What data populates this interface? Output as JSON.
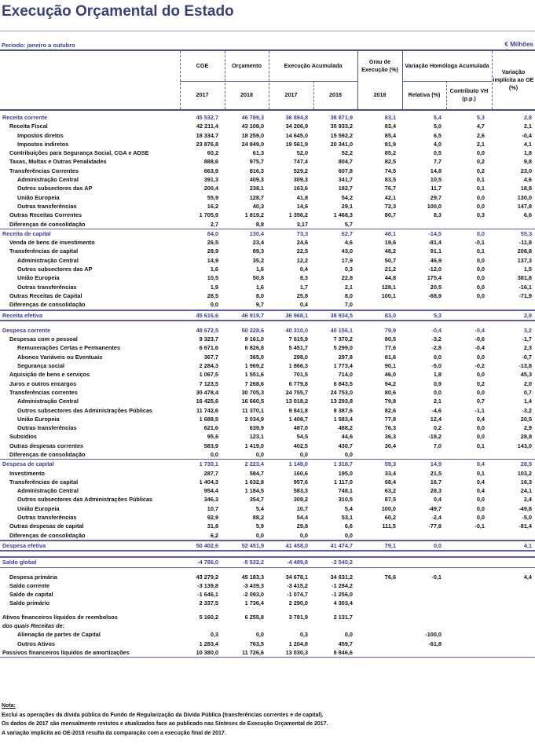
{
  "title": "Execução Orçamental do Estado",
  "period": "Período: janeiro a outubro",
  "units": "€ Milhões",
  "header": {
    "cge": "CGE",
    "orcamento": "Orçamento",
    "execucao": "Execução Acumulada",
    "grau": "Grau de Execução (%)",
    "variacao_homologa": "Variação Homóloga Acumulada",
    "variacao_implicita": "Variação implícita ao OE (%)",
    "y_cge": "2017",
    "y_orc": "2018",
    "y_ex17": "2017",
    "y_ex18": "2018",
    "y_grau": "2018",
    "relativa": "Relativa (%)",
    "contributo": "Contributo VH (p.p.)"
  },
  "rows": [
    {
      "label": "Receita corrente",
      "cls": "sec l0",
      "v": [
        "45 532,7",
        "46 789,3",
        "36 894,8",
        "38 871,9",
        "83,1",
        "5,4",
        "5,3",
        "2,8"
      ]
    },
    {
      "label": "Receita Fiscal",
      "cls": "l1",
      "v": [
        "42 211,4",
        "43 108,0",
        "34 206,9",
        "35 933,2",
        "83,4",
        "5,0",
        "4,7",
        "2,1"
      ]
    },
    {
      "label": "Impostos diretos",
      "cls": "l2",
      "v": [
        "18 334,7",
        "18 259,0",
        "14 645,0",
        "15 592,2",
        "85,4",
        "6,5",
        "2,6",
        "-0,4"
      ]
    },
    {
      "label": "Impostos indiretos",
      "cls": "l2",
      "v": [
        "23 876,8",
        "24 849,0",
        "19 561,9",
        "20 341,0",
        "81,9",
        "4,0",
        "2,1",
        "4,1"
      ]
    },
    {
      "label": "Contribuições para Segurança Social, CGA e ADSE",
      "cls": "l1",
      "v": [
        "60,2",
        "61,3",
        "52,0",
        "52,2",
        "85,2",
        "0,5",
        "0,0",
        "1,8"
      ]
    },
    {
      "label": "Taxas, Multas e Outras Penalidades",
      "cls": "l1",
      "v": [
        "888,6",
        "975,7",
        "747,4",
        "804,7",
        "82,5",
        "7,7",
        "0,2",
        "9,8"
      ]
    },
    {
      "label": "Transferências Correntes",
      "cls": "l1",
      "v": [
        "663,9",
        "816,3",
        "529,2",
        "607,8",
        "74,5",
        "14,8",
        "0,2",
        "23,0"
      ]
    },
    {
      "label": "Administração Central",
      "cls": "l2",
      "v": [
        "391,3",
        "409,3",
        "309,3",
        "341,7",
        "83,5",
        "10,5",
        "0,1",
        "4,6"
      ]
    },
    {
      "label": "Outros subsectores das AP",
      "cls": "l2",
      "v": [
        "200,4",
        "238,1",
        "163,6",
        "182,7",
        "76,7",
        "11,7",
        "0,1",
        "18,8"
      ]
    },
    {
      "label": "União Europeia",
      "cls": "l2",
      "v": [
        "55,9",
        "128,7",
        "41,8",
        "54,2",
        "42,1",
        "29,7",
        "0,0",
        "130,0"
      ]
    },
    {
      "label": "Outras transferências",
      "cls": "l2",
      "v": [
        "16,2",
        "40,3",
        "14,6",
        "29,1",
        "72,3",
        "100,0",
        "0,0",
        "147,8"
      ]
    },
    {
      "label": "Outras Receitas Correntes",
      "cls": "l1",
      "v": [
        "1 705,9",
        "1 819,2",
        "1 356,2",
        "1 468,3",
        "80,7",
        "8,3",
        "0,3",
        "6,6"
      ]
    },
    {
      "label": "Diferenças de consolidação",
      "cls": "l1",
      "v": [
        "2,7",
        "8,8",
        "3,17",
        "5,7",
        "",
        "",
        "",
        ""
      ]
    },
    {
      "label": "Receita de capital",
      "cls": "sec l0 topline",
      "v": [
        "84,0",
        "130,4",
        "73,3",
        "62,7",
        "48,1",
        "-14,5",
        "0,0",
        "55,3"
      ]
    },
    {
      "label": "Venda de bens de investimento",
      "cls": "l1",
      "v": [
        "26,5",
        "23,4",
        "24,6",
        "4,6",
        "19,6",
        "-81,4",
        "-0,1",
        "-11,8"
      ]
    },
    {
      "label": "Transferências de capital",
      "cls": "l1",
      "v": [
        "28,9",
        "89,3",
        "22,5",
        "43,0",
        "48,2",
        "91,1",
        "0,1",
        "208,8"
      ]
    },
    {
      "label": "Administração Central",
      "cls": "l2",
      "v": [
        "14,9",
        "35,2",
        "12,2",
        "17,9",
        "50,7",
        "46,9",
        "0,0",
        "137,3"
      ]
    },
    {
      "label": "Outros subsectores das AP",
      "cls": "l2",
      "v": [
        "1,6",
        "1,6",
        "0,4",
        "0,3",
        "21,2",
        "-12,0",
        "0,0",
        "1,5"
      ]
    },
    {
      "label": "União Europeia",
      "cls": "l2",
      "v": [
        "10,5",
        "50,8",
        "8,3",
        "22,8",
        "44,8",
        "175,4",
        "0,0",
        "381,8"
      ]
    },
    {
      "label": "Outras transferências",
      "cls": "l2",
      "v": [
        "1,9",
        "1,6",
        "1,7",
        "2,1",
        "128,1",
        "20,5",
        "0,0",
        "-16,1"
      ]
    },
    {
      "label": "Outras Receitas de Capital",
      "cls": "l1",
      "v": [
        "28,5",
        "8,0",
        "25,8",
        "8,0",
        "100,1",
        "-68,9",
        "0,0",
        "-71,9"
      ]
    },
    {
      "label": "Diferenças de consolidação",
      "cls": "l1",
      "v": [
        "0,0",
        "9,7",
        "0,4",
        "7,0",
        "",
        "",
        "",
        ""
      ]
    },
    {
      "label": "Receita efetiva",
      "cls": "sec l0 thick botthick",
      "v": [
        "45 616,6",
        "46 919,7",
        "36 968,1",
        "38 934,5",
        "83,0",
        "5,3",
        "",
        "2,9"
      ]
    },
    {
      "label": "",
      "cls": "sp",
      "v": []
    },
    {
      "label": "Despesa corrente",
      "cls": "sec l0",
      "v": [
        "48 672,5",
        "50 228,6",
        "40 310,0",
        "40 156,1",
        "79,9",
        "-0,4",
        "-0,4",
        "3,2"
      ]
    },
    {
      "label": "Despesas com o pessoal",
      "cls": "l1",
      "v": [
        "9 323,7",
        "9 161,0",
        "7 615,9",
        "7 370,2",
        "80,5",
        "-3,2",
        "-0,6",
        "-1,7"
      ]
    },
    {
      "label": "Remunerações Certas e Permanentes",
      "cls": "l2",
      "v": [
        "6 671,6",
        "6 826,8",
        "5 451,7",
        "5 299,0",
        "77,6",
        "-2,8",
        "-0,4",
        "2,3"
      ]
    },
    {
      "label": "Abonos Variáveis ou Eventuais",
      "cls": "l2",
      "v": [
        "367,7",
        "365,0",
        "298,0",
        "297,8",
        "81,6",
        "0,0",
        "0,0",
        "-0,7"
      ]
    },
    {
      "label": "Segurança social",
      "cls": "l2",
      "v": [
        "2 284,3",
        "1 969,2",
        "1 866,3",
        "1 773,4",
        "90,1",
        "-5,0",
        "-0,2",
        "-13,8"
      ]
    },
    {
      "label": "Aquisição de bens e serviços",
      "cls": "l1",
      "v": [
        "1 067,5",
        "1 551,6",
        "701,5",
        "714,0",
        "46,0",
        "1,8",
        "0,0",
        "45,3"
      ]
    },
    {
      "label": "Juros e outros encargos",
      "cls": "l1",
      "v": [
        "7 123,5",
        "7 268,6",
        "6 779,8",
        "6 843,5",
        "94,2",
        "0,9",
        "0,2",
        "2,0"
      ]
    },
    {
      "label": "Transferências correntes",
      "cls": "l1",
      "v": [
        "30 478,4",
        "30 705,3",
        "24 755,7",
        "24 753,0",
        "80,6",
        "0,0",
        "0,0",
        "0,7"
      ]
    },
    {
      "label": "Administração Central",
      "cls": "l2",
      "v": [
        "16 425,6",
        "16 660,5",
        "13 018,2",
        "13 293,8",
        "79,8",
        "2,1",
        "0,7",
        "1,4"
      ]
    },
    {
      "label": "Outros subsectores das Administrações Públicas",
      "cls": "l2",
      "v": [
        "11 742,6",
        "11 370,1",
        "9 841,8",
        "9 387,6",
        "82,6",
        "-4,6",
        "-1,1",
        "-3,2"
      ]
    },
    {
      "label": "União Europeia",
      "cls": "l2",
      "v": [
        "1 688,5",
        "2 034,9",
        "1 408,7",
        "1 583,4",
        "77,8",
        "12,4",
        "0,4",
        "20,5"
      ]
    },
    {
      "label": "Outras transferências",
      "cls": "l2",
      "v": [
        "621,6",
        "639,9",
        "487,0",
        "488,2",
        "76,3",
        "0,2",
        "0,0",
        "2,9"
      ]
    },
    {
      "label": "Subsídios",
      "cls": "l1",
      "v": [
        "95,6",
        "123,1",
        "54,5",
        "44,6",
        "36,3",
        "-18,2",
        "0,0",
        "28,8"
      ]
    },
    {
      "label": "Outras despesas correntes",
      "cls": "l1",
      "v": [
        "583,9",
        "1 419,0",
        "402,5",
        "430,7",
        "30,4",
        "7,0",
        "0,1",
        "143,0"
      ]
    },
    {
      "label": "Diferenças de consolidação",
      "cls": "l1",
      "v": [
        "0,0",
        "0,0",
        "0,0",
        "0,0",
        "",
        "",
        "",
        ""
      ]
    },
    {
      "label": "Despesa de capital",
      "cls": "sec l0 topline",
      "v": [
        "1 730,1",
        "2 223,4",
        "1 148,0",
        "1 318,7",
        "59,3",
        "14,9",
        "0,4",
        "28,5"
      ]
    },
    {
      "label": "Investimento",
      "cls": "l1",
      "v": [
        "287,7",
        "584,7",
        "160,6",
        "195,0",
        "33,4",
        "21,5",
        "0,1",
        "103,2"
      ]
    },
    {
      "label": "Transferências de capital",
      "cls": "l1",
      "v": [
        "1 404,3",
        "1 632,8",
        "957,6",
        "1 117,0",
        "68,4",
        "16,7",
        "0,4",
        "16,3"
      ]
    },
    {
      "label": "Administração Central",
      "cls": "l2",
      "v": [
        "954,4",
        "1 184,5",
        "583,3",
        "748,1",
        "63,2",
        "28,3",
        "0,4",
        "24,1"
      ]
    },
    {
      "label": "Outros subsectores das Administrações Públicas",
      "cls": "l2",
      "v": [
        "346,3",
        "354,7",
        "309,2",
        "310,5",
        "87,5",
        "0,4",
        "0,0",
        "2,4"
      ]
    },
    {
      "label": "União Europeia",
      "cls": "l2",
      "v": [
        "10,7",
        "5,4",
        "10,7",
        "5,4",
        "100,0",
        "-49,7",
        "0,0",
        "-49,8"
      ]
    },
    {
      "label": "Outras transferências",
      "cls": "l2",
      "v": [
        "92,9",
        "88,2",
        "54,4",
        "53,1",
        "60,2",
        "-2,4",
        "0,0",
        "-5,0"
      ]
    },
    {
      "label": "Outras despesas de capital",
      "cls": "l1",
      "v": [
        "31,8",
        "5,9",
        "29,8",
        "6,6",
        "111,5",
        "-77,8",
        "-0,1",
        "-81,4"
      ]
    },
    {
      "label": "Diferenças de consolidação",
      "cls": "l1",
      "v": [
        "6,2",
        "0,0",
        "0,0",
        "0,0",
        "",
        "",
        "",
        ""
      ]
    },
    {
      "label": "Despesa efetiva",
      "cls": "sec l0 thick botthick",
      "v": [
        "50 402,6",
        "52 451,9",
        "41 458,0",
        "41 474,7",
        "79,1",
        "0,0",
        "",
        "4,1"
      ]
    },
    {
      "label": "",
      "cls": "sp",
      "v": []
    },
    {
      "label": "Saldo global",
      "cls": "sec l0 thick botline",
      "v": [
        "-4 786,0",
        "-5 532,2",
        "-4 489,8",
        "-2 540,2",
        "",
        "",
        "",
        ""
      ]
    },
    {
      "label": "",
      "cls": "sp",
      "v": []
    },
    {
      "label": "Despesa primária",
      "cls": "l1",
      "v": [
        "43 279,2",
        "45 183,3",
        "34 678,1",
        "34 631,2",
        "76,6",
        "-0,1",
        "",
        "4,4"
      ]
    },
    {
      "label": "Saldo corrente",
      "cls": "l1",
      "v": [
        "-3 139,8",
        "-3 439,3",
        "-3 415,2",
        "-1 284,2",
        "",
        "",
        "",
        ""
      ]
    },
    {
      "label": "Saldo de capital",
      "cls": "l1",
      "v": [
        "-1 646,1",
        "-2 093,0",
        "-1 074,7",
        "-1 256,0",
        "",
        "",
        "",
        ""
      ]
    },
    {
      "label": "Saldo primário",
      "cls": "l1",
      "v": [
        "2 337,5",
        "1 736,4",
        "2 290,0",
        "4 303,4",
        "",
        "",
        "",
        ""
      ]
    },
    {
      "label": "",
      "cls": "sp",
      "v": []
    },
    {
      "label": "Ativos financeiros líquidos de reembolsos",
      "cls": "l0",
      "v": [
        "5 160,2",
        "6 255,8",
        "3 791,9",
        "2 131,7",
        "",
        "",
        "",
        ""
      ]
    },
    {
      "label": "dos quais Receitas de:",
      "cls": "l0 it",
      "v": [
        "",
        "",
        "",
        "",
        "",
        "",
        "",
        ""
      ]
    },
    {
      "label": "Alienação de partes de Capital",
      "cls": "l2",
      "v": [
        "0,3",
        "0,0",
        "0,3",
        "0,0",
        "",
        "-100,0",
        "",
        ""
      ]
    },
    {
      "label": "Outros Ativos",
      "cls": "l2",
      "v": [
        "1 283,4",
        "763,5",
        "1 204,8",
        "459,7",
        "",
        "-61,8",
        "",
        ""
      ]
    },
    {
      "label": "Passivos financeiros líquidos de amortizações",
      "cls": "l0 botline",
      "v": [
        "10 380,0",
        "11 726,6",
        "13 030,3",
        "8 846,6",
        "",
        "",
        "",
        ""
      ]
    }
  ],
  "notes": {
    "heading": "Nota:",
    "lines": [
      "Exclui as operações da dívida pública do Fundo de Regularização da Dívida Pública (transferências correntes e de capital).",
      "Os dados de 2017 são mensalmente revistos e atualizados face ao publicado nas Sínteses de Execução Orçamental de 2017.",
      "A variação implícita ao OE-2018 resulta da comparação com a execução final de 2017."
    ]
  }
}
